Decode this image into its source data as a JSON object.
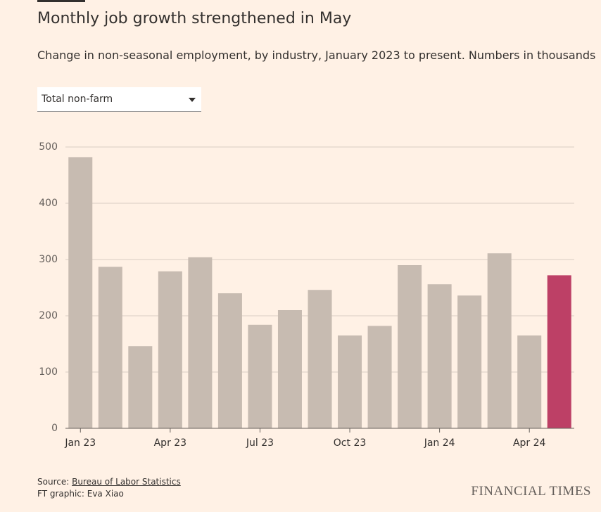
{
  "chart_data": {
    "type": "bar",
    "title": "Monthly job growth strengthened in May",
    "subtitle": "Change in non-seasonal employment, by industry, January 2023 to present. Numbers in thousands",
    "selector": "Total non-farm",
    "categories": [
      "Jan 23",
      null,
      null,
      "Apr 23",
      null,
      null,
      "Jul 23",
      null,
      null,
      "Oct 23",
      null,
      null,
      "Jan 24",
      null,
      null,
      "Apr 24",
      null
    ],
    "values": [
      482,
      287,
      146,
      279,
      304,
      240,
      184,
      210,
      246,
      165,
      182,
      290,
      256,
      236,
      311,
      165,
      272
    ],
    "colors": [
      "#c7bbb1",
      "#c7bbb1",
      "#c7bbb1",
      "#c7bbb1",
      "#c7bbb1",
      "#c7bbb1",
      "#c7bbb1",
      "#c7bbb1",
      "#c7bbb1",
      "#c7bbb1",
      "#c7bbb1",
      "#c7bbb1",
      "#c7bbb1",
      "#c7bbb1",
      "#c7bbb1",
      "#c7bbb1",
      "#bd4066"
    ],
    "ylim": [
      0,
      500
    ],
    "yticks": [
      0,
      100,
      200,
      300,
      400,
      500
    ],
    "grid": true,
    "source_prefix": "Source:",
    "source": "Bureau of Labor Statistics",
    "credit": "FT graphic: Eva Xiao",
    "brand": "FINANCIAL TIMES"
  }
}
